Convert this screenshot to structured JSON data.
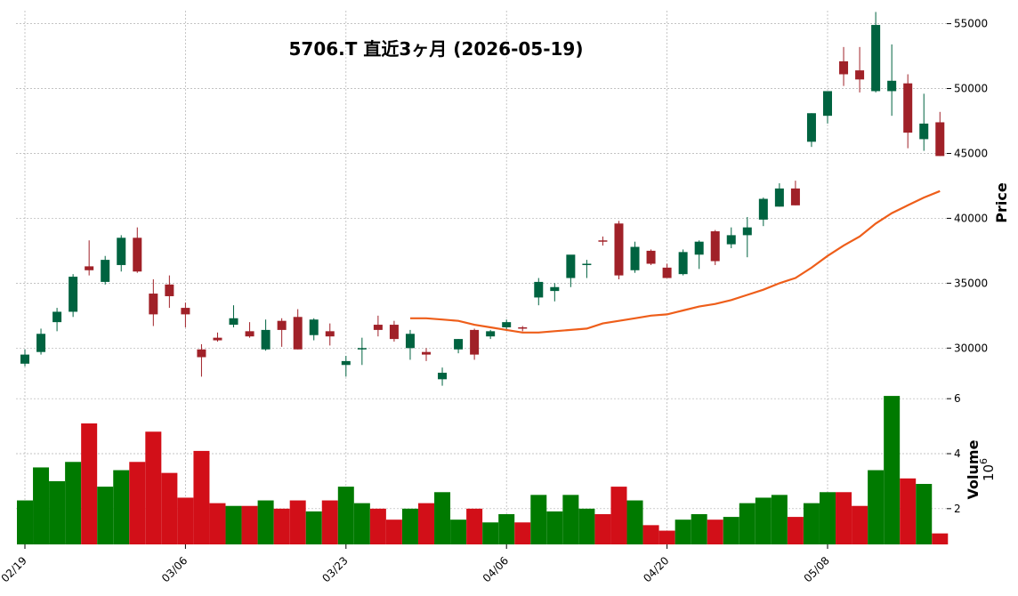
{
  "chart_data": {
    "type": "candlestick",
    "title": "5706.T  直近3ヶ月  (2026-05-19)",
    "price_ylabel": "Price",
    "volume_ylabel": "Volume",
    "volume_multiplier_base": "10",
    "volume_multiplier_exp": "6",
    "price_ylim": [
      26800,
      56000
    ],
    "price_ticks": [
      "30000",
      "35000",
      "40000",
      "45000",
      "50000",
      "55000"
    ],
    "volume_ylim": [
      0.7,
      6.2
    ],
    "volume_ticks": [
      "2",
      "4",
      "6"
    ],
    "x_tick_labels": [
      {
        "index": 0,
        "label": "02/19"
      },
      {
        "index": 10,
        "label": "03/06"
      },
      {
        "index": 20,
        "label": "03/23"
      },
      {
        "index": 30,
        "label": "04/06"
      },
      {
        "index": 40,
        "label": "04/20"
      },
      {
        "index": 50,
        "label": "05/08"
      }
    ],
    "colors": {
      "up": "#006340",
      "down": "#a02128",
      "volume_up": "#007a00",
      "volume_down": "#d20f18",
      "ma": "#ee5e1a",
      "grid": "#b0b0b0"
    },
    "ma_start_index": 24,
    "candles": [
      {
        "o": 28800,
        "h": 29900,
        "l": 28600,
        "c": 29500,
        "v": 2.3
      },
      {
        "o": 29700,
        "h": 31500,
        "l": 29500,
        "c": 31100,
        "v": 3.5
      },
      {
        "o": 32000,
        "h": 33100,
        "l": 31300,
        "c": 32800,
        "v": 3.0
      },
      {
        "o": 32800,
        "h": 35700,
        "l": 32400,
        "c": 35500,
        "v": 3.7
      },
      {
        "o": 36300,
        "h": 38300,
        "l": 35600,
        "c": 36000,
        "v": 5.1
      },
      {
        "o": 35100,
        "h": 37100,
        "l": 34900,
        "c": 36800,
        "v": 2.8
      },
      {
        "o": 36400,
        "h": 38700,
        "l": 35900,
        "c": 38500,
        "v": 3.4
      },
      {
        "o": 38500,
        "h": 39300,
        "l": 35800,
        "c": 35900,
        "v": 3.7
      },
      {
        "o": 34200,
        "h": 35300,
        "l": 31700,
        "c": 32600,
        "v": 4.8
      },
      {
        "o": 34900,
        "h": 35600,
        "l": 33100,
        "c": 34000,
        "v": 3.3
      },
      {
        "o": 33100,
        "h": 33500,
        "l": 31600,
        "c": 32600,
        "v": 2.4
      },
      {
        "o": 29900,
        "h": 30300,
        "l": 27800,
        "c": 29300,
        "v": 4.1
      },
      {
        "o": 30800,
        "h": 31200,
        "l": 30500,
        "c": 30600,
        "v": 2.2
      },
      {
        "o": 31800,
        "h": 33300,
        "l": 31600,
        "c": 32300,
        "v": 2.1
      },
      {
        "o": 31300,
        "h": 32000,
        "l": 30800,
        "c": 30900,
        "v": 2.1
      },
      {
        "o": 29900,
        "h": 32200,
        "l": 29800,
        "c": 31400,
        "v": 2.3
      },
      {
        "o": 32100,
        "h": 32300,
        "l": 30100,
        "c": 31400,
        "v": 2.0
      },
      {
        "o": 32400,
        "h": 33000,
        "l": 29900,
        "c": 29900,
        "v": 2.3
      },
      {
        "o": 31000,
        "h": 32300,
        "l": 30600,
        "c": 32200,
        "v": 1.9
      },
      {
        "o": 31300,
        "h": 31900,
        "l": 30200,
        "c": 30900,
        "v": 2.3
      },
      {
        "o": 28700,
        "h": 29400,
        "l": 27800,
        "c": 29000,
        "v": 2.8
      },
      {
        "o": 29900,
        "h": 30800,
        "l": 28700,
        "c": 30000,
        "v": 2.2
      },
      {
        "o": 31800,
        "h": 32500,
        "l": 30900,
        "c": 31400,
        "v": 2.0
      },
      {
        "o": 31800,
        "h": 32100,
        "l": 30500,
        "c": 30700,
        "v": 1.6
      },
      {
        "o": 30000,
        "h": 31400,
        "l": 29100,
        "c": 31100,
        "v": 2.0,
        "ma": 32300
      },
      {
        "o": 29700,
        "h": 30000,
        "l": 29000,
        "c": 29500,
        "v": 2.2,
        "ma": 32300
      },
      {
        "o": 27600,
        "h": 28500,
        "l": 27100,
        "c": 28100,
        "v": 2.6,
        "ma": 32200
      },
      {
        "o": 29900,
        "h": 30700,
        "l": 29600,
        "c": 30700,
        "v": 1.6,
        "ma": 32100
      },
      {
        "o": 31400,
        "h": 31500,
        "l": 29100,
        "c": 29500,
        "v": 2.0,
        "ma": 31800
      },
      {
        "o": 30900,
        "h": 31400,
        "l": 30700,
        "c": 31300,
        "v": 1.5,
        "ma": 31600
      },
      {
        "o": 31600,
        "h": 32200,
        "l": 31400,
        "c": 32000,
        "v": 1.8,
        "ma": 31400
      },
      {
        "o": 31600,
        "h": 31700,
        "l": 31300,
        "c": 31500,
        "v": 1.5,
        "ma": 31200
      },
      {
        "o": 33900,
        "h": 35400,
        "l": 33300,
        "c": 35100,
        "v": 2.5,
        "ma": 31200
      },
      {
        "o": 34400,
        "h": 35000,
        "l": 33600,
        "c": 34700,
        "v": 1.9,
        "ma": 31300
      },
      {
        "o": 35400,
        "h": 37100,
        "l": 34700,
        "c": 37200,
        "v": 2.5,
        "ma": 31400
      },
      {
        "o": 36500,
        "h": 36800,
        "l": 35400,
        "c": 36500,
        "v": 2.0,
        "ma": 31500
      },
      {
        "o": 38300,
        "h": 38600,
        "l": 37900,
        "c": 38200,
        "v": 1.8,
        "ma": 31900
      },
      {
        "o": 39600,
        "h": 39800,
        "l": 35300,
        "c": 35600,
        "v": 2.8,
        "ma": 32100
      },
      {
        "o": 36000,
        "h": 38200,
        "l": 35800,
        "c": 37800,
        "v": 2.3,
        "ma": 32300
      },
      {
        "o": 37500,
        "h": 37600,
        "l": 36400,
        "c": 36500,
        "v": 1.4,
        "ma": 32500
      },
      {
        "o": 36200,
        "h": 36500,
        "l": 35400,
        "c": 35400,
        "v": 1.2,
        "ma": 32600
      },
      {
        "o": 35700,
        "h": 37600,
        "l": 35600,
        "c": 37400,
        "v": 1.6,
        "ma": 32900
      },
      {
        "o": 37200,
        "h": 38300,
        "l": 36100,
        "c": 38200,
        "v": 1.8,
        "ma": 33200
      },
      {
        "o": 39000,
        "h": 39100,
        "l": 36400,
        "c": 36700,
        "v": 1.6,
        "ma": 33400
      },
      {
        "o": 38000,
        "h": 39300,
        "l": 37700,
        "c": 38700,
        "v": 1.7,
        "ma": 33700
      },
      {
        "o": 38700,
        "h": 40100,
        "l": 37000,
        "c": 39300,
        "v": 2.2,
        "ma": 34100
      },
      {
        "o": 39900,
        "h": 41600,
        "l": 39400,
        "c": 41500,
        "v": 2.4,
        "ma": 34500
      },
      {
        "o": 40900,
        "h": 42700,
        "l": 40900,
        "c": 42300,
        "v": 2.5,
        "ma": 35000
      },
      {
        "o": 42300,
        "h": 42900,
        "l": 41000,
        "c": 41000,
        "v": 1.7,
        "ma": 35400
      },
      {
        "o": 45900,
        "h": 48100,
        "l": 45500,
        "c": 48100,
        "v": 2.2,
        "ma": 36200
      },
      {
        "o": 47900,
        "h": 49800,
        "l": 47300,
        "c": 49800,
        "v": 2.6,
        "ma": 37100
      },
      {
        "o": 52100,
        "h": 53200,
        "l": 50200,
        "c": 51100,
        "v": 2.6,
        "ma": 37900
      },
      {
        "o": 51400,
        "h": 53200,
        "l": 49700,
        "c": 50700,
        "v": 2.1,
        "ma": 38600
      },
      {
        "o": 49800,
        "h": 55900,
        "l": 49700,
        "c": 54900,
        "v": 3.4,
        "ma": 39600
      },
      {
        "o": 49800,
        "h": 53400,
        "l": 47900,
        "c": 50600,
        "v": 6.1,
        "ma": 40400
      },
      {
        "o": 50400,
        "h": 51100,
        "l": 45400,
        "c": 46600,
        "v": 3.1,
        "ma": 41000
      },
      {
        "o": 46100,
        "h": 49600,
        "l": 45200,
        "c": 47300,
        "v": 2.9,
        "ma": 41600
      },
      {
        "o": 47400,
        "h": 48200,
        "l": 44800,
        "c": 44800,
        "v": 1.1,
        "ma": 42100
      }
    ]
  }
}
